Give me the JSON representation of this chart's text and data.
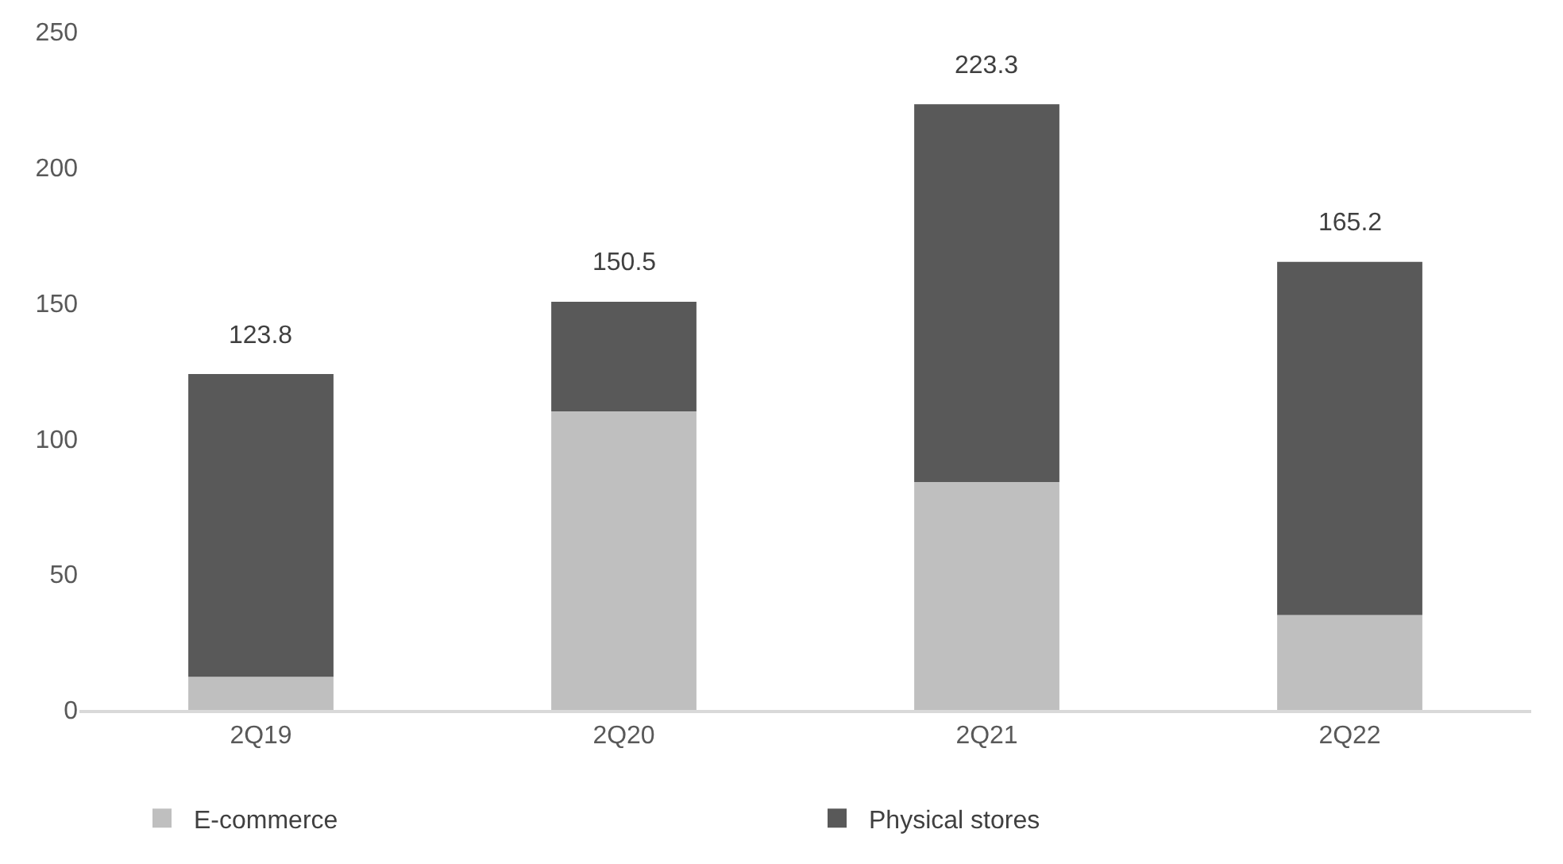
{
  "chart_data": {
    "type": "bar",
    "stacked": true,
    "categories": [
      "2Q19",
      "2Q20",
      "2Q21",
      "2Q22"
    ],
    "series": [
      {
        "name": "E-commerce",
        "color": "#bfbfbf",
        "values": [
          12.2,
          110.1,
          84,
          35
        ]
      },
      {
        "name": "Physical stores",
        "color": "#595959",
        "values": [
          111.6,
          40.4,
          139.3,
          130.2
        ]
      }
    ],
    "totals": [
      "123.8",
      "150.5",
      "223.3",
      "165.2"
    ],
    "ylim": [
      0,
      250
    ],
    "yticks": [
      0,
      50,
      100,
      150,
      200,
      250
    ],
    "grid": false,
    "legend": "bottom"
  }
}
